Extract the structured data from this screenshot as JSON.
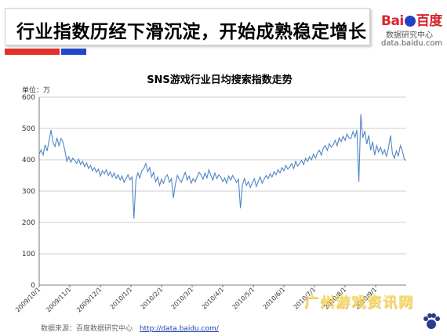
{
  "header": {
    "title": "行业指数历经下滑沉淀，开始成熟稳定增长"
  },
  "accent_colors": {
    "red": "#e0312a",
    "blue": "#2347c8"
  },
  "logo": {
    "main_a": "Bai",
    "main_b": "百度",
    "sub": "数据研究中心",
    "url": "data.baidu.com",
    "red": "#d7232b",
    "blue": "#2441c4"
  },
  "source": {
    "label": "数据来源：百度数据研究中心",
    "link": "http://data.baidu.com/"
  },
  "watermark": "广州游戏资讯网",
  "chart_data": {
    "type": "line",
    "title": "SNS游戏行业日均搜索指数走势",
    "ylabel": "单位：万",
    "ylim": [
      0,
      600
    ],
    "yticks": [
      "0",
      "100",
      "200",
      "300",
      "400",
      "500",
      "600"
    ],
    "xticks": [
      "2009/10/1",
      "2009/11/1",
      "2009/12/1",
      "2010/1/1",
      "2010/2/1",
      "2010/3/1",
      "2010/4/1",
      "2010/5/1",
      "2010/6/1",
      "2010/7/1",
      "2010/8/1",
      "2010/9/1"
    ],
    "grid": true,
    "color": "#4f86c6",
    "series": [
      {
        "values": [
          418,
          432,
          415,
          448,
          428,
          462,
          495,
          455,
          442,
          470,
          445,
          468,
          458,
          430,
          395,
          410,
          392,
          405,
          398,
          388,
          402,
          385,
          395,
          378,
          390,
          372,
          382,
          365,
          375,
          360,
          370,
          348,
          365,
          355,
          368,
          350,
          362,
          345,
          358,
          340,
          352,
          335,
          348,
          328,
          340,
          352,
          336,
          345,
          212,
          335,
          358,
          342,
          365,
          372,
          388,
          362,
          375,
          345,
          360,
          330,
          345,
          318,
          338,
          325,
          345,
          352,
          328,
          340,
          278,
          322,
          350,
          338,
          328,
          345,
          360,
          335,
          348,
          325,
          340,
          330,
          345,
          360,
          352,
          338,
          358,
          342,
          368,
          350,
          335,
          358,
          340,
          352,
          345,
          330,
          342,
          325,
          348,
          335,
          350,
          340,
          328,
          338,
          245,
          320,
          340,
          318,
          330,
          312,
          325,
          340,
          315,
          330,
          345,
          325,
          338,
          350,
          340,
          355,
          345,
          362,
          352,
          368,
          358,
          375,
          365,
          382,
          370,
          378,
          388,
          372,
          395,
          380,
          388,
          398,
          385,
          405,
          395,
          410,
          400,
          418,
          405,
          422,
          430,
          415,
          438,
          445,
          430,
          452,
          440,
          448,
          462,
          445,
          470,
          458,
          475,
          462,
          482,
          470,
          468,
          490,
          472,
          495,
          330,
          545,
          470,
          492,
          450,
          478,
          430,
          458,
          415,
          445,
          425,
          440,
          418,
          432,
          410,
          438,
          478,
          420,
          405,
          428,
          412,
          445,
          430,
          402,
          398
        ]
      }
    ]
  }
}
